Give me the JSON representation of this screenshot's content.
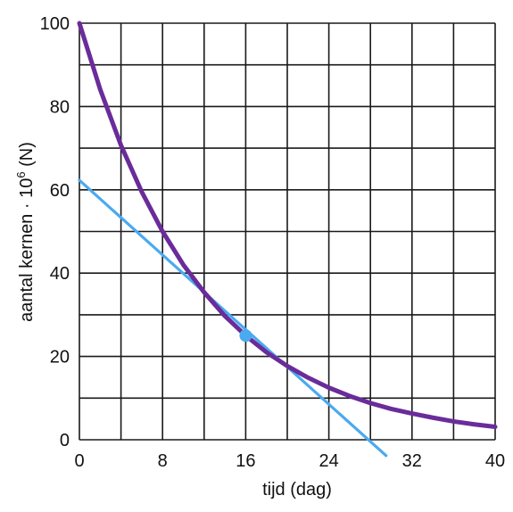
{
  "chart_data": {
    "type": "line",
    "xlabel": "tijd (dag)",
    "ylabel": {
      "main": "aantal kernen · 10",
      "superscript": "6",
      "suffix": " (N)"
    },
    "xlim": [
      0,
      40
    ],
    "ylim": [
      0,
      100
    ],
    "x_ticks": [
      0,
      8,
      16,
      24,
      32,
      40
    ],
    "y_ticks": [
      0,
      20,
      40,
      60,
      80,
      100
    ],
    "grid": true,
    "grid_step_x": 4,
    "grid_step_y": 10,
    "series": [
      {
        "kind": "decay-curve",
        "color": "#6a2c9a",
        "x": [
          0,
          2,
          4,
          6,
          8,
          10,
          12,
          14,
          16,
          18,
          20,
          22,
          24,
          26,
          28,
          30,
          32,
          34,
          36,
          38,
          40
        ],
        "y": [
          100,
          84.1,
          70.7,
          59.5,
          50.0,
          42.0,
          35.4,
          29.7,
          25.0,
          21.0,
          17.7,
          14.9,
          12.5,
          10.5,
          8.8,
          7.4,
          6.3,
          5.3,
          4.4,
          3.7,
          3.1
        ]
      },
      {
        "kind": "tangent-line",
        "color": "#4aaaf0",
        "x": [
          0,
          29.5
        ],
        "y": [
          62.3,
          -3.8
        ]
      }
    ],
    "markers": [
      {
        "x": 16,
        "y": 25,
        "color": "#4aaaf0"
      }
    ]
  }
}
